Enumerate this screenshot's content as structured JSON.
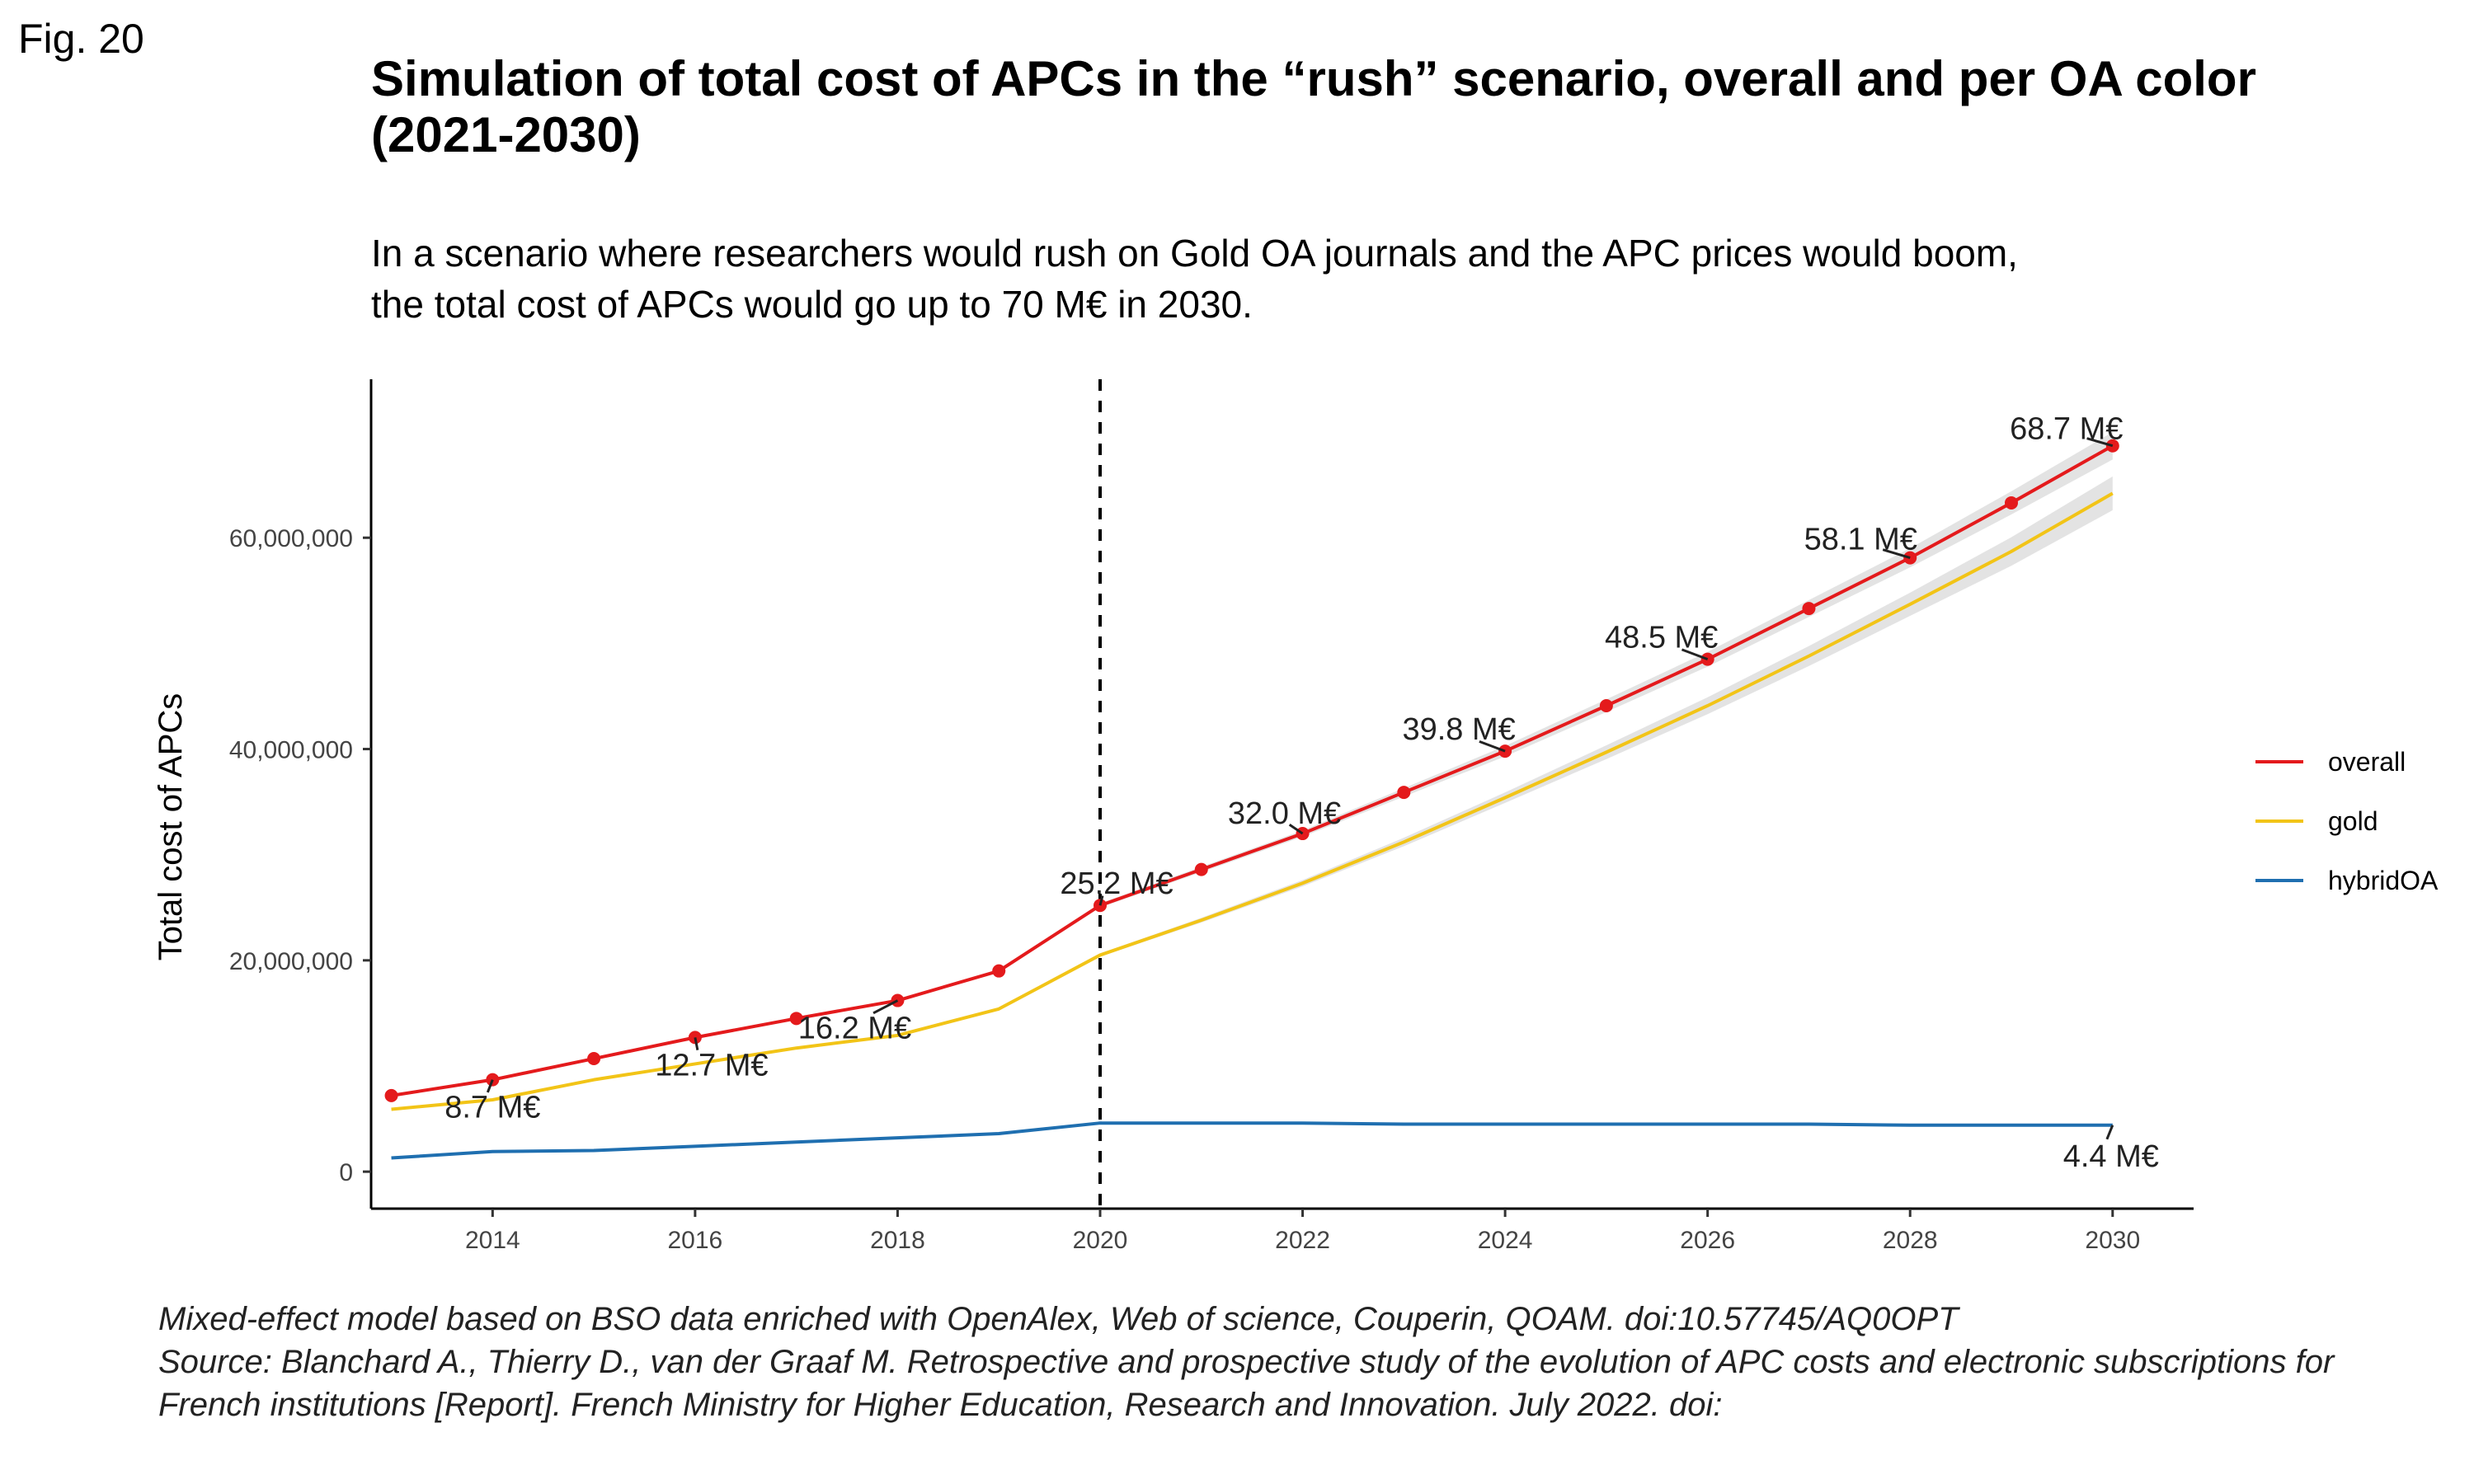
{
  "figure": {
    "label": "Fig. 20",
    "title": "Simulation of total cost of APCs in the “rush” scenario, overall and per OA color (2021-2030)",
    "subtitle_lines": [
      "In a scenario where researchers would rush on Gold OA journals and the APC prices would boom,",
      "the total cost of APCs would go up to 70 M€ in 2030."
    ],
    "caption_lines": [
      "Mixed-effect model based on BSO data enriched with OpenAlex, Web of science, Couperin, QOAM. doi:10.57745/AQ0OPT",
      "Source: Blanchard A., Thierry D., van der Graaf M. Retrospective and prospective study of the evolution of APC costs and electronic subscriptions for",
      "French institutions [Report]. French Ministry for Higher Education, Research and Innovation. July 2022. doi:"
    ]
  },
  "chart_data": {
    "type": "line",
    "title": "",
    "xlabel": "",
    "ylabel": "Total cost of APCs",
    "xlim": [
      2012.8,
      2030.8
    ],
    "ylim": [
      -3500000,
      75000000
    ],
    "x_ticks": [
      2014,
      2016,
      2018,
      2020,
      2022,
      2024,
      2026,
      2028,
      2030
    ],
    "y_ticks": [
      0,
      20000000,
      40000000,
      60000000
    ],
    "y_tick_labels": [
      "0",
      "20,000,000",
      "40,000,000",
      "60,000,000"
    ],
    "grid": false,
    "legend_position": "right",
    "vline": {
      "x": 2020,
      "style": "dashed",
      "color": "#000000"
    },
    "series": [
      {
        "name": "overall",
        "color": "#e41a1c",
        "markers": true,
        "x": [
          2013,
          2014,
          2015,
          2016,
          2017,
          2018,
          2019,
          2020,
          2021,
          2022,
          2023,
          2024,
          2025,
          2026,
          2027,
          2028,
          2029,
          2030
        ],
        "values": [
          7200000,
          8700000,
          10700000,
          12700000,
          14500000,
          16200000,
          19000000,
          25200000,
          28600000,
          32000000,
          35900000,
          39800000,
          44100000,
          48500000,
          53300000,
          58100000,
          63300000,
          68700000
        ],
        "band": {
          "x": [
            2020,
            2022,
            2024,
            2026,
            2028,
            2030
          ],
          "half_width": [
            200000,
            300000,
            500000,
            700000,
            900000,
            1300000
          ]
        }
      },
      {
        "name": "gold",
        "color": "#f2c417",
        "markers": false,
        "x": [
          2013,
          2014,
          2015,
          2016,
          2017,
          2018,
          2019,
          2020,
          2021,
          2022,
          2023,
          2024,
          2025,
          2026,
          2027,
          2028,
          2029,
          2030
        ],
        "values": [
          5900000,
          6800000,
          8700000,
          10200000,
          11700000,
          12900000,
          15400000,
          20500000,
          23800000,
          27300000,
          31200000,
          35400000,
          39700000,
          44100000,
          48800000,
          53700000,
          58700000,
          64200000
        ],
        "band": {
          "x": [
            2020,
            2022,
            2024,
            2026,
            2028,
            2030
          ],
          "half_width": [
            150000,
            300000,
            500000,
            800000,
            1100000,
            1600000
          ]
        }
      },
      {
        "name": "hybridOA",
        "color": "#1f6fb0",
        "markers": false,
        "x": [
          2013,
          2014,
          2015,
          2016,
          2017,
          2018,
          2019,
          2020,
          2021,
          2022,
          2023,
          2024,
          2025,
          2026,
          2027,
          2028,
          2029,
          2030
        ],
        "values": [
          1300000,
          1900000,
          2000000,
          2400000,
          2800000,
          3200000,
          3600000,
          4600000,
          4600000,
          4600000,
          4500000,
          4500000,
          4500000,
          4500000,
          4500000,
          4400000,
          4400000,
          4400000
        ]
      }
    ],
    "annotations": [
      {
        "text": "8.7 M€",
        "x": 2014,
        "y": 8700000
      },
      {
        "text": "12.7 M€",
        "x": 2016,
        "y": 12700000
      },
      {
        "text": "16.2 M€",
        "x": 2018,
        "y": 16200000
      },
      {
        "text": "25.2 M€",
        "x": 2020,
        "y": 25200000
      },
      {
        "text": "32.0 M€",
        "x": 2022,
        "y": 32000000
      },
      {
        "text": "39.8 M€",
        "x": 2024,
        "y": 39800000
      },
      {
        "text": "48.5 M€",
        "x": 2026,
        "y": 48500000
      },
      {
        "text": "58.1 M€",
        "x": 2028,
        "y": 58100000
      },
      {
        "text": "68.7 M€",
        "x": 2030,
        "y": 68700000
      },
      {
        "text": "4.4 M€",
        "x": 2030,
        "y": 4400000
      }
    ]
  }
}
